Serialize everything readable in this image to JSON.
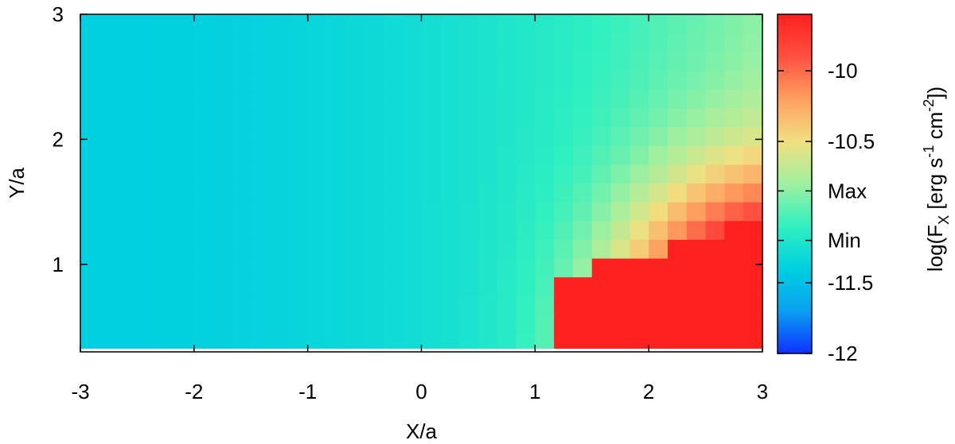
{
  "chart_data": {
    "type": "heatmap",
    "title": "",
    "xlabel": "X/a",
    "ylabel": "Y/a",
    "xlim": [
      -3,
      3
    ],
    "ylim": [
      0.3,
      3
    ],
    "x_ticks": [
      {
        "value": -3,
        "label": "-3"
      },
      {
        "value": -2,
        "label": "-2"
      },
      {
        "value": -1,
        "label": "-1"
      },
      {
        "value": 0,
        "label": "0"
      },
      {
        "value": 1,
        "label": "1"
      },
      {
        "value": 2,
        "label": "2"
      },
      {
        "value": 3,
        "label": "3"
      }
    ],
    "y_ticks": [
      {
        "value": 1,
        "label": "1"
      },
      {
        "value": 2,
        "label": "2"
      },
      {
        "value": 3,
        "label": "3"
      }
    ],
    "grid_nx": 36,
    "grid_ny": 18,
    "field_description_values": {
      "background_level": -11.35,
      "peak_level": -9.6,
      "peak_location": [
        3,
        0.3
      ]
    },
    "colorbar": {
      "label": "log(F_X [erg s^-1 cm^-2])",
      "label_parts": {
        "base": "log(F",
        "sub": "X",
        "mid1": " [erg s",
        "sup1": "-1",
        "mid2": " cm",
        "sup2": "-2",
        "end": "])"
      },
      "range": [
        -12,
        -9.6
      ],
      "colormap": [
        "#1030ff",
        "#0aa0f0",
        "#00d0e0",
        "#30f0c0",
        "#a0f0a0",
        "#f0e080",
        "#ffa060",
        "#ff5040",
        "#ff2020"
      ],
      "ticks": [
        {
          "value": -10,
          "label": "-10"
        },
        {
          "value": -10.5,
          "label": "-10.5"
        },
        {
          "value": -10.85,
          "label": "Max"
        },
        {
          "value": -11.2,
          "label": "Min"
        },
        {
          "value": -11.5,
          "label": "-11.5"
        },
        {
          "value": -12,
          "label": "-12"
        }
      ]
    }
  }
}
